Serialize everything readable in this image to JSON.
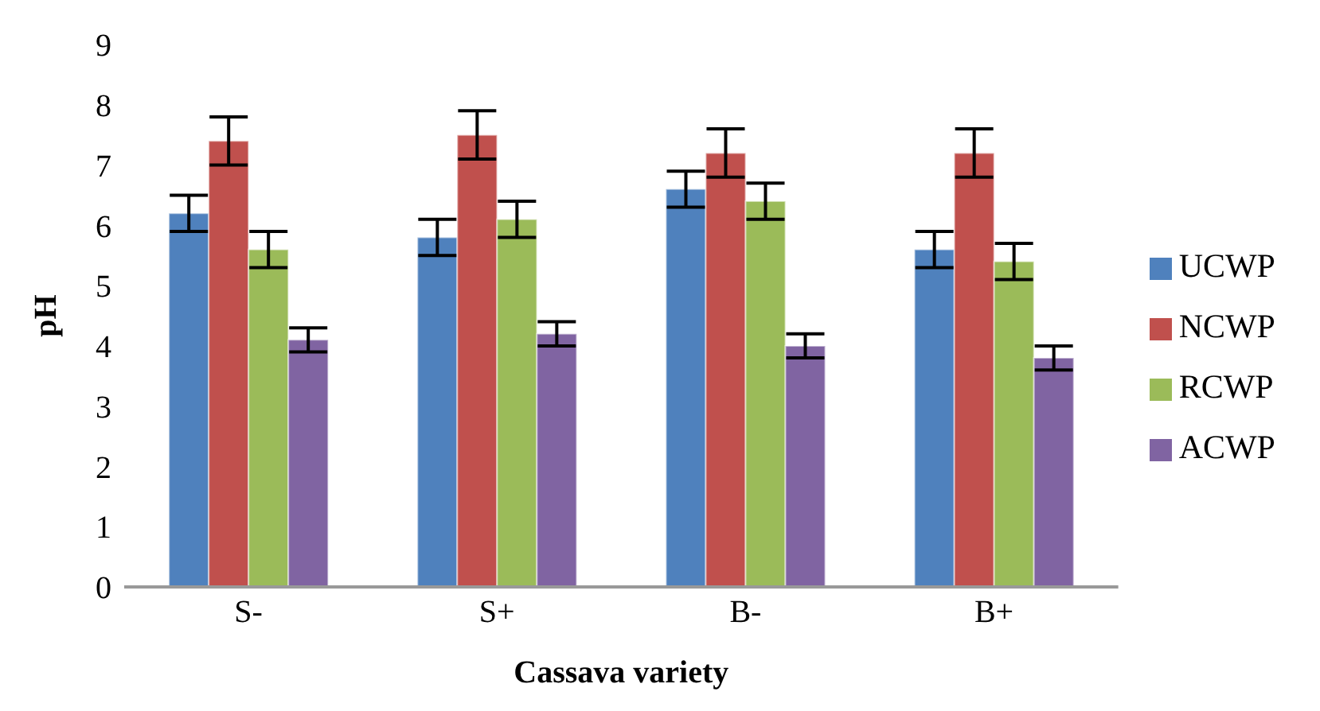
{
  "chart_data": {
    "type": "bar",
    "xlabel": "Cassava variety",
    "ylabel": "pH",
    "categories": [
      "S-",
      "S+",
      "B-",
      "B+"
    ],
    "series": [
      {
        "name": "UCWP",
        "color": "#4f81bd",
        "values": [
          6.2,
          5.8,
          6.6,
          5.6
        ],
        "errors": [
          0.3,
          0.3,
          0.3,
          0.3
        ]
      },
      {
        "name": "NCWP",
        "color": "#c0504d",
        "values": [
          7.4,
          7.5,
          7.2,
          7.2
        ],
        "errors": [
          0.4,
          0.4,
          0.4,
          0.4
        ]
      },
      {
        "name": "RCWP",
        "color": "#9bbb59",
        "values": [
          5.6,
          6.1,
          6.4,
          5.4
        ],
        "errors": [
          0.3,
          0.3,
          0.3,
          0.3
        ]
      },
      {
        "name": "ACWP",
        "color": "#8064a2",
        "values": [
          4.1,
          4.2,
          4.0,
          3.8
        ],
        "errors": [
          0.2,
          0.2,
          0.2,
          0.2
        ]
      }
    ],
    "ylim": [
      0,
      9
    ],
    "yticks": [
      0,
      1,
      2,
      3,
      4,
      5,
      6,
      7,
      8,
      9
    ],
    "grid": false,
    "legend": "right"
  }
}
